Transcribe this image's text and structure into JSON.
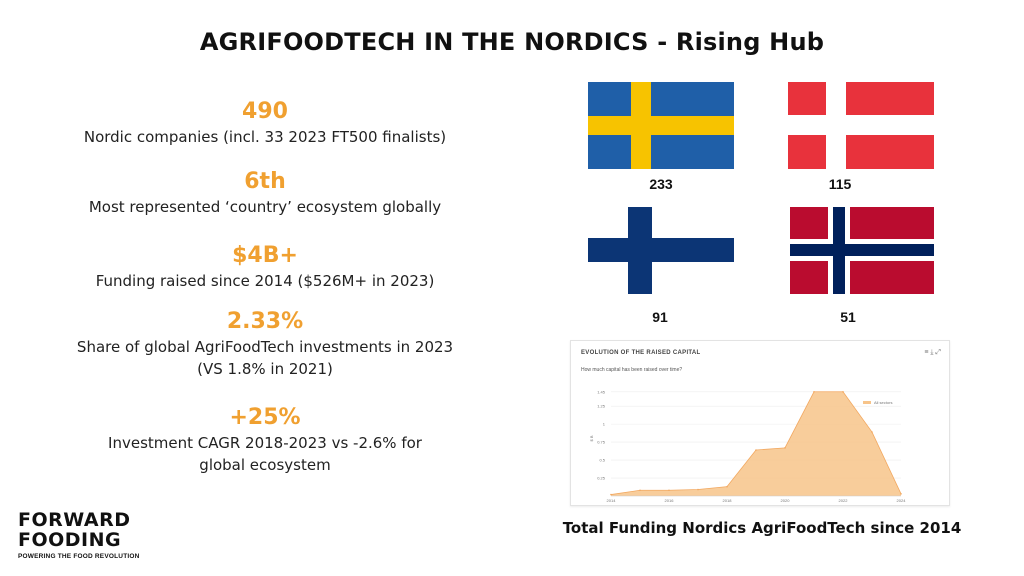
{
  "title": "AGRIFOODTECH IN THE NORDICS - Rising Hub",
  "stats": [
    {
      "value": "490",
      "desc": [
        "Nordic companies (incl. 33 2023 FT500 finalists)"
      ]
    },
    {
      "value": "6th",
      "desc": [
        "Most represented ‘country’ ecosystem globally"
      ]
    },
    {
      "value": "$4B+",
      "desc": [
        "Funding raised since 2014 ($526M+ in 2023)"
      ]
    },
    {
      "value": "2.33%",
      "desc": [
        "Share of global AgriFoodTech investments in 2023",
        "(VS 1.8% in 2021)"
      ]
    },
    {
      "value": "+25%",
      "desc": [
        "Investment CAGR 2018-2023 vs -2.6% for",
        "global ecosystem"
      ]
    }
  ],
  "flags": [
    {
      "country": "Sweden",
      "icon": "sweden-flag-icon",
      "count": "233",
      "colors": {
        "field": "#1f5fa8",
        "cross": "#f7c300"
      }
    },
    {
      "country": "Denmark",
      "icon": "denmark-flag-icon",
      "count": "115",
      "colors": {
        "field": "#e8323c",
        "cross": "#ffffff"
      }
    },
    {
      "country": "Finland",
      "icon": "finland-flag-icon",
      "count": "91",
      "colors": {
        "field": "#ffffff",
        "cross": "#0c3575"
      }
    },
    {
      "country": "Norway",
      "icon": "norway-flag-icon",
      "count": "51",
      "colors": {
        "field": "#ba0c2f",
        "cross": "#00205b",
        "border": "#ffffff"
      }
    }
  ],
  "chart": {
    "title": "EVOLUTION OF THE RAISED CAPITAL",
    "subtitle": "How much capital has been raised over time?",
    "legend": "All sectors",
    "caption": "Total Funding Nordics AgriFoodTech since 2014",
    "area_color": "#f7c48a",
    "line_color": "#f2a860"
  },
  "chart_data": {
    "type": "area",
    "x": [
      2014,
      2015,
      2016,
      2017,
      2018,
      2019,
      2020,
      2021,
      2022,
      2023,
      2024
    ],
    "y": [
      0.02,
      0.08,
      0.08,
      0.09,
      0.13,
      0.64,
      0.67,
      1.45,
      1.45,
      0.89,
      0.03
    ],
    "xlabels": [
      "2014",
      "2016",
      "2018",
      "2020",
      "2022",
      "2024"
    ],
    "yticks": [
      "0.25",
      "0.5",
      "0.75",
      "1",
      "1.25",
      "1.45"
    ],
    "ylabel": "$ B",
    "ylim": [
      0,
      1.6
    ],
    "grid": true,
    "legend_position": "top-right"
  },
  "logo": {
    "line1": "FORWARD",
    "line2": "FOODING",
    "tagline": "POWERING THE FOOD REVOLUTION"
  }
}
